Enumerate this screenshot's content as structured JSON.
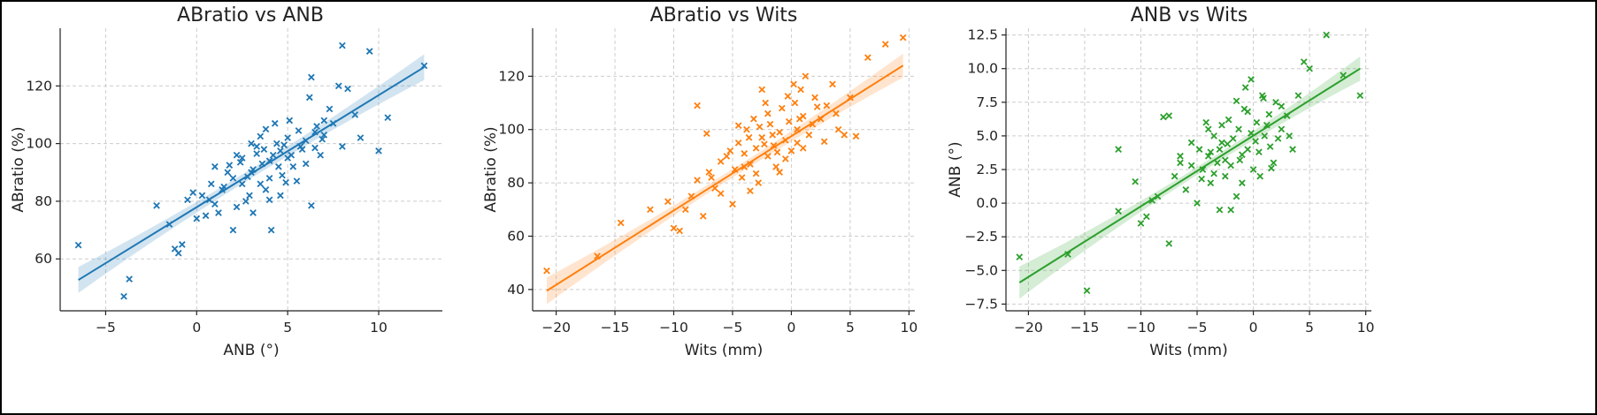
{
  "chart_data": [
    {
      "type": "scatter",
      "title": "ABratio vs ANB",
      "xlabel": "ANB (°)",
      "ylabel": "ABratio (%)",
      "xlim": [
        -7.5,
        13.5
      ],
      "ylim": [
        42,
        140
      ],
      "xticks": [
        -5,
        0,
        5,
        10
      ],
      "yticks": [
        60,
        80,
        100,
        120
      ],
      "grid": true,
      "color": "#1f77b4",
      "marker": "x",
      "fit": {
        "x": [
          -6.5,
          12.5
        ],
        "y": [
          52.7,
          126.5
        ],
        "band_half_width": [
          4.5,
          1.6,
          4.5
        ]
      },
      "points": [
        [
          -6.5,
          64.8
        ],
        [
          -4.0,
          47.0
        ],
        [
          -3.7,
          53.0
        ],
        [
          -2.2,
          78.5
        ],
        [
          -1.2,
          63.5
        ],
        [
          -1.0,
          62.0
        ],
        [
          -0.8,
          65.0
        ],
        [
          -0.5,
          80.5
        ],
        [
          -0.2,
          83.0
        ],
        [
          0.3,
          82.0
        ],
        [
          0.5,
          75.0
        ],
        [
          0.7,
          80.5
        ],
        [
          1.0,
          92.0
        ],
        [
          1.2,
          76.0
        ],
        [
          1.5,
          85.0
        ],
        [
          1.8,
          92.5
        ],
        [
          2.0,
          70.0
        ],
        [
          2.2,
          96.0
        ],
        [
          2.5,
          86.0
        ],
        [
          2.7,
          80.0
        ],
        [
          3.0,
          90.0
        ],
        [
          3.1,
          76.0
        ],
        [
          3.3,
          99.0
        ],
        [
          3.5,
          86.0
        ],
        [
          3.6,
          93.0
        ],
        [
          3.8,
          105.0
        ],
        [
          4.0,
          88.0
        ],
        [
          4.1,
          70.0
        ],
        [
          4.2,
          96.0
        ],
        [
          4.4,
          100.0
        ],
        [
          4.5,
          92.0
        ],
        [
          4.6,
          82.0
        ],
        [
          4.8,
          99.5
        ],
        [
          5.0,
          95.0
        ],
        [
          5.1,
          108.0
        ],
        [
          5.3,
          92.0
        ],
        [
          5.5,
          87.0
        ],
        [
          5.7,
          99.0
        ],
        [
          6.0,
          101.0
        ],
        [
          6.2,
          116.0
        ],
        [
          6.3,
          78.5
        ],
        [
          6.5,
          104.0
        ],
        [
          6.8,
          96.0
        ],
        [
          7.0,
          103.0
        ],
        [
          7.3,
          112.0
        ],
        [
          7.5,
          107.0
        ],
        [
          7.8,
          120.0
        ],
        [
          8.0,
          99.0
        ],
        [
          8.3,
          119.0
        ],
        [
          8.7,
          110.0
        ],
        [
          9.0,
          102.0
        ],
        [
          9.5,
          132.0
        ],
        [
          10.0,
          97.5
        ],
        [
          10.5,
          109.0
        ],
        [
          12.5,
          127.0
        ],
        [
          8.0,
          134.0
        ],
        [
          6.3,
          123.0
        ],
        [
          2.5,
          95.0
        ],
        [
          3.0,
          100.0
        ],
        [
          5.8,
          98.0
        ],
        [
          1.0,
          79.0
        ],
        [
          2.8,
          88.5
        ],
        [
          4.0,
          94.0
        ],
        [
          6.5,
          98.5
        ],
        [
          0.0,
          74.0
        ],
        [
          -1.5,
          72.0
        ],
        [
          7.0,
          108.0
        ],
        [
          5.0,
          102.0
        ],
        [
          3.8,
          84.0
        ],
        [
          2.2,
          78.0
        ],
        [
          4.7,
          89.0
        ],
        [
          3.3,
          96.5
        ],
        [
          1.7,
          90.0
        ],
        [
          6.0,
          93.0
        ],
        [
          4.3,
          107.0
        ],
        [
          2.9,
          82.0
        ],
        [
          5.6,
          104.5
        ],
        [
          0.8,
          86.0
        ],
        [
          3.7,
          98.0
        ],
        [
          2.4,
          93.5
        ],
        [
          4.9,
          86.5
        ],
        [
          6.9,
          101.5
        ],
        [
          1.4,
          84.0
        ],
        [
          3.5,
          102.5
        ],
        [
          5.2,
          96.0
        ],
        [
          4.0,
          80.5
        ],
        [
          2.0,
          88.0
        ],
        [
          6.6,
          106.0
        ],
        [
          3.1,
          91.0
        ],
        [
          4.6,
          97.5
        ]
      ]
    },
    {
      "type": "scatter",
      "title": "ABratio vs Wits",
      "xlabel": "Wits (mm)",
      "ylabel": "ABratio (%)",
      "xlim": [
        -22,
        10.5
      ],
      "ylim": [
        32,
        138
      ],
      "xticks": [
        -20,
        -15,
        -10,
        -5,
        0,
        5,
        10
      ],
      "yticks": [
        40,
        60,
        80,
        100,
        120
      ],
      "grid": true,
      "color": "#ff7f0e",
      "marker": "x",
      "fit": {
        "x": [
          -20.8,
          9.5
        ],
        "y": [
          39.5,
          124.0
        ],
        "band_half_width": [
          5.0,
          1.6,
          4.5
        ]
      },
      "points": [
        [
          -20.8,
          47.0
        ],
        [
          -16.5,
          52.5
        ],
        [
          -14.5,
          65.0
        ],
        [
          -12.0,
          70.0
        ],
        [
          -10.5,
          73.0
        ],
        [
          -10.0,
          63.0
        ],
        [
          -9.5,
          62.0
        ],
        [
          -9.0,
          70.0
        ],
        [
          -8.5,
          75.0
        ],
        [
          -8.0,
          81.0
        ],
        [
          -7.5,
          67.5
        ],
        [
          -7.2,
          98.5
        ],
        [
          -7.0,
          84.0
        ],
        [
          -6.5,
          78.0
        ],
        [
          -6.0,
          88.0
        ],
        [
          -5.5,
          90.0
        ],
        [
          -5.0,
          72.0
        ],
        [
          -4.8,
          85.0
        ],
        [
          -4.5,
          95.0
        ],
        [
          -4.2,
          82.0
        ],
        [
          -4.0,
          91.0
        ],
        [
          -3.8,
          100.0
        ],
        [
          -3.5,
          87.0
        ],
        [
          -3.2,
          104.0
        ],
        [
          -3.0,
          93.0
        ],
        [
          -2.8,
          80.0
        ],
        [
          -2.5,
          97.0
        ],
        [
          -2.2,
          110.0
        ],
        [
          -2.0,
          90.0
        ],
        [
          -1.8,
          102.0
        ],
        [
          -1.5,
          94.0
        ],
        [
          -1.3,
          86.0
        ],
        [
          -1.0,
          99.0
        ],
        [
          -0.8,
          108.0
        ],
        [
          -0.5,
          96.0
        ],
        [
          -0.2,
          103.0
        ],
        [
          0.0,
          92.0
        ],
        [
          0.3,
          110.0
        ],
        [
          0.5,
          100.0
        ],
        [
          0.8,
          115.0
        ],
        [
          1.0,
          105.0
        ],
        [
          1.5,
          98.0
        ],
        [
          2.0,
          112.0
        ],
        [
          2.5,
          104.0
        ],
        [
          3.0,
          109.0
        ],
        [
          3.5,
          117.0
        ],
        [
          4.0,
          100.0
        ],
        [
          4.5,
          98.0
        ],
        [
          5.0,
          112.0
        ],
        [
          5.5,
          97.5
        ],
        [
          6.5,
          127.0
        ],
        [
          8.0,
          132.0
        ],
        [
          9.5,
          134.5
        ],
        [
          -8.0,
          109.0
        ],
        [
          -2.5,
          115.0
        ],
        [
          1.2,
          120.0
        ],
        [
          -3.5,
          77.0
        ],
        [
          -1.0,
          84.0
        ],
        [
          0.5,
          95.0
        ],
        [
          -4.5,
          101.5
        ],
        [
          -6.0,
          76.0
        ],
        [
          -2.0,
          106.0
        ],
        [
          1.8,
          102.0
        ],
        [
          -0.5,
          89.0
        ],
        [
          -5.2,
          92.0
        ],
        [
          0.2,
          117.0
        ],
        [
          2.8,
          95.5
        ],
        [
          -1.6,
          98.0
        ],
        [
          -3.0,
          83.5
        ],
        [
          -2.7,
          101.0
        ],
        [
          -4.0,
          86.0
        ],
        [
          -0.3,
          112.5
        ],
        [
          1.0,
          93.0
        ],
        [
          -1.2,
          91.5
        ],
        [
          -6.8,
          82.0
        ],
        [
          3.8,
          106.0
        ],
        [
          -2.3,
          94.5
        ],
        [
          0.7,
          104.0
        ],
        [
          -3.6,
          97.0
        ],
        [
          2.2,
          108.5
        ]
      ]
    },
    {
      "type": "scatter",
      "title": "ANB vs Wits",
      "xlabel": "Wits (mm)",
      "ylabel": "ANB (°)",
      "xlim": [
        -22,
        10.5
      ],
      "ylim": [
        -8,
        13
      ],
      "xticks": [
        -20,
        -15,
        -10,
        -5,
        0,
        5,
        10
      ],
      "yticks": [
        -7.5,
        -5.0,
        -2.5,
        0.0,
        2.5,
        5.0,
        7.5,
        10.0,
        12.5
      ],
      "grid": true,
      "color": "#2ca02c",
      "marker": "x",
      "fit": {
        "x": [
          -20.8,
          9.5
        ],
        "y": [
          -5.9,
          10.0
        ],
        "band_half_width": [
          1.2,
          0.3,
          0.9
        ]
      },
      "points": [
        [
          -20.8,
          -4.0
        ],
        [
          -16.5,
          -3.8
        ],
        [
          -14.8,
          -6.5
        ],
        [
          -12.0,
          4.0
        ],
        [
          -12.0,
          -0.6
        ],
        [
          -10.5,
          1.6
        ],
        [
          -10.0,
          -1.5
        ],
        [
          -9.5,
          -1.0
        ],
        [
          -9.0,
          0.2
        ],
        [
          -8.5,
          0.5
        ],
        [
          -8.0,
          6.4
        ],
        [
          -7.5,
          6.5
        ],
        [
          -7.5,
          -3.0
        ],
        [
          -7.0,
          2.0
        ],
        [
          -6.5,
          3.5
        ],
        [
          -6.0,
          1.0
        ],
        [
          -5.5,
          2.8
        ],
        [
          -5.0,
          0.0
        ],
        [
          -4.8,
          4.0
        ],
        [
          -4.5,
          2.5
        ],
        [
          -4.2,
          6.0
        ],
        [
          -4.0,
          3.5
        ],
        [
          -3.8,
          1.5
        ],
        [
          -3.5,
          5.0
        ],
        [
          -3.2,
          3.0
        ],
        [
          -3.0,
          -0.5
        ],
        [
          -2.8,
          4.5
        ],
        [
          -2.5,
          3.2
        ],
        [
          -2.2,
          6.2
        ],
        [
          -2.0,
          2.8
        ],
        [
          -1.8,
          4.8
        ],
        [
          -1.5,
          0.5
        ],
        [
          -1.3,
          5.5
        ],
        [
          -1.0,
          3.6
        ],
        [
          -0.8,
          7.0
        ],
        [
          -0.5,
          4.0
        ],
        [
          -0.2,
          9.2
        ],
        [
          0.0,
          2.5
        ],
        [
          0.3,
          6.0
        ],
        [
          0.5,
          3.8
        ],
        [
          0.8,
          8.0
        ],
        [
          1.0,
          5.0
        ],
        [
          1.5,
          4.2
        ],
        [
          2.0,
          7.5
        ],
        [
          2.5,
          5.5
        ],
        [
          3.0,
          6.5
        ],
        [
          3.5,
          4.0
        ],
        [
          4.0,
          8.0
        ],
        [
          4.5,
          10.5
        ],
        [
          5.0,
          10.0
        ],
        [
          6.5,
          12.5
        ],
        [
          8.0,
          9.5
        ],
        [
          9.5,
          8.0
        ],
        [
          -2.0,
          -0.5
        ],
        [
          -5.5,
          4.5
        ],
        [
          -1.0,
          1.5
        ],
        [
          1.2,
          5.8
        ],
        [
          -3.5,
          2.2
        ],
        [
          -0.5,
          6.8
        ],
        [
          2.5,
          7.2
        ],
        [
          -4.0,
          5.5
        ],
        [
          0.2,
          4.6
        ],
        [
          -2.5,
          2.0
        ],
        [
          1.8,
          3.0
        ],
        [
          -1.5,
          7.6
        ],
        [
          3.2,
          5.0
        ],
        [
          -6.5,
          3.0
        ],
        [
          -3.0,
          4.0
        ],
        [
          0.6,
          2.0
        ],
        [
          -2.8,
          5.8
        ],
        [
          1.4,
          6.6
        ],
        [
          -0.2,
          5.2
        ],
        [
          -3.8,
          3.8
        ],
        [
          2.2,
          4.8
        ],
        [
          -1.2,
          3.2
        ],
        [
          0.9,
          7.8
        ],
        [
          -4.6,
          1.8
        ],
        [
          -2.3,
          4.4
        ],
        [
          1.6,
          2.6
        ],
        [
          -0.7,
          8.6
        ]
      ]
    }
  ]
}
